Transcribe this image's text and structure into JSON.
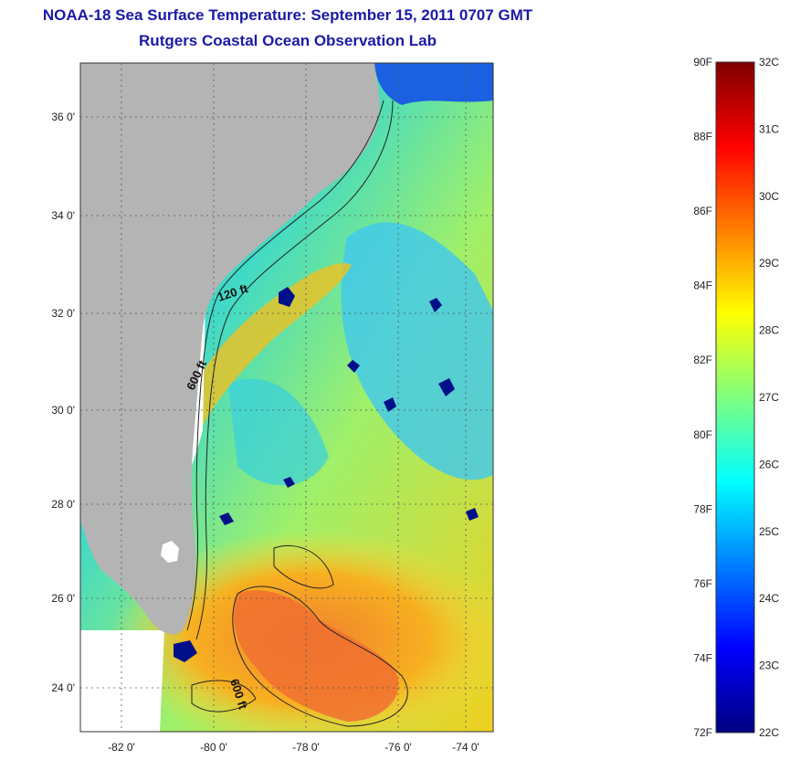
{
  "header": {
    "title": "NOAA-18 Sea Surface Temperature:  September 15, 2011 0707 GMT",
    "subtitle": "Rutgers Coastal Ocean Observation Lab"
  },
  "map": {
    "lat_ticks": [
      "36 0'",
      "34 0'",
      "32 0'",
      "30 0'",
      "28 0'",
      "26 0'",
      "24 0'"
    ],
    "lon_ticks": [
      "-82 0'",
      "-80 0'",
      "-78 0'",
      "-76 0'",
      "-74 0'"
    ],
    "isobath_labels": [
      "120 ft",
      "600 ft",
      "600 ft"
    ],
    "land_color": "#b4b4b4",
    "cloud_color": "#ffffff"
  },
  "colorbar": {
    "fahrenheit_labels": [
      "90F",
      "88F",
      "86F",
      "84F",
      "82F",
      "80F",
      "78F",
      "76F",
      "74F",
      "72F"
    ],
    "celsius_labels": [
      "32C",
      "31C",
      "30C",
      "29C",
      "28C",
      "27C",
      "26C",
      "25C",
      "24C",
      "23C",
      "22C"
    ],
    "colormap": [
      "#00007f",
      "#0000ff",
      "#007fff",
      "#00ffff",
      "#7fff7f",
      "#ffff00",
      "#ff7f00",
      "#ff0000",
      "#7f0000"
    ]
  }
}
